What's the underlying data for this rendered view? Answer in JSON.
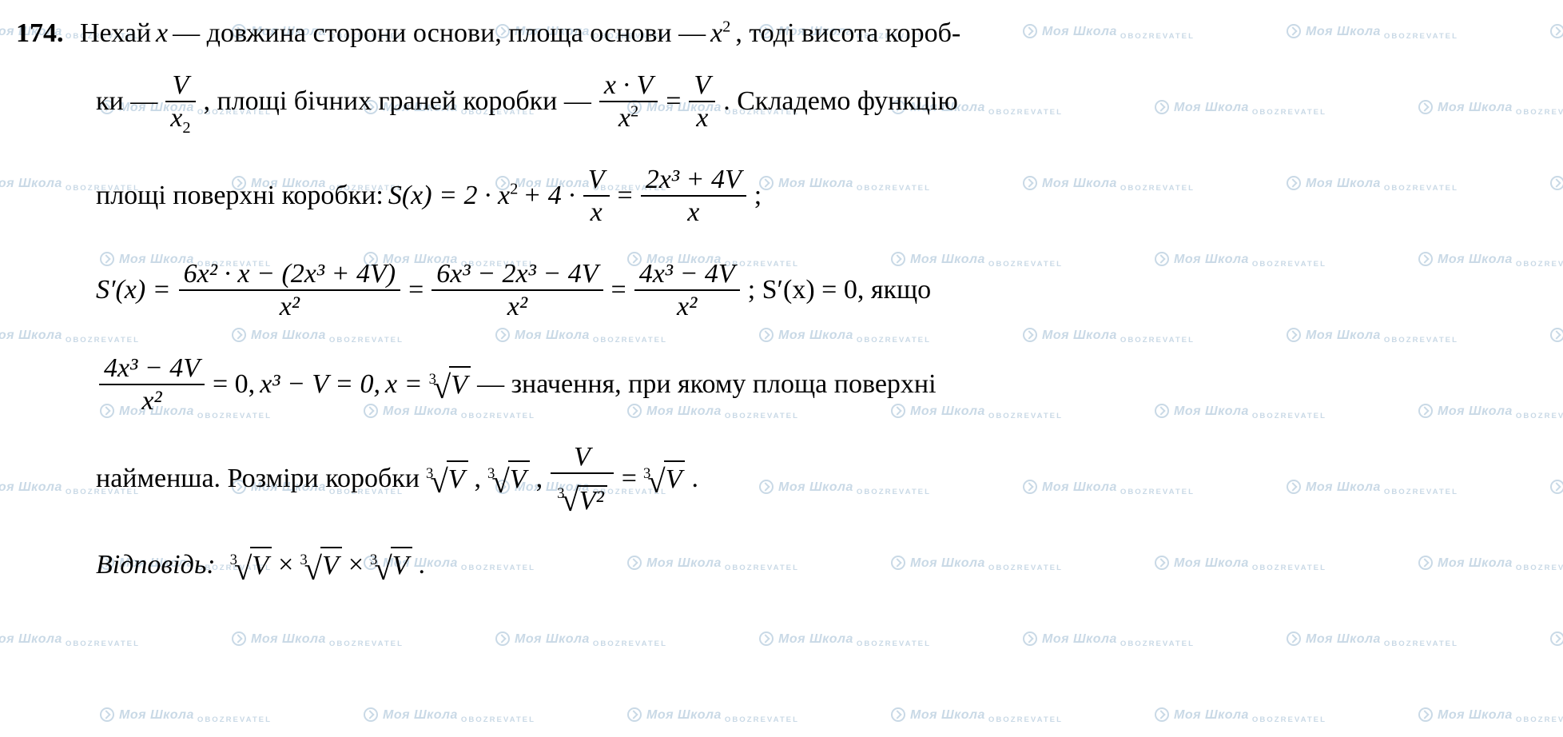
{
  "colors": {
    "text": "#000000",
    "background": "#ffffff",
    "watermark": "#c9d9e6"
  },
  "typography": {
    "body_font": "Times New Roman",
    "body_size_pt": 26,
    "watermark_font": "Arial",
    "watermark_size_pt": 12
  },
  "problem_number": "174.",
  "line1": {
    "t1": "Нехай ",
    "x": "x",
    "t2": " — довжина сторони основи, площа основи — ",
    "x2_base": "x",
    "x2_exp": "2",
    "t3": ", тоді висота короб-"
  },
  "line2": {
    "t1": "ки — ",
    "frac1_num": "V",
    "frac1_den_base": "x",
    "frac1_den_sub": "2",
    "t2": ",  площі бічних граней коробки — ",
    "frac2_num": "x · V",
    "frac2_den_base": "x",
    "frac2_den_exp": "2",
    "eq": " = ",
    "frac3_num": "V",
    "frac3_den": "x",
    "t3": ".  Складемо функцію"
  },
  "line3": {
    "t1": "площі поверхні коробки:  ",
    "lhs": "S(x) = 2 · x",
    "lhs_exp": "2",
    "plus": " + 4 · ",
    "frac1_num": "V",
    "frac1_den": "x",
    "eq": " = ",
    "frac2_num": "2x³ + 4V",
    "frac2_den": "x",
    "semicolon": " ;"
  },
  "line4": {
    "lhs": "S′(x) = ",
    "frac1_num": "6x² · x − (2x³ + 4V)",
    "frac1_den": "x²",
    "eq1": " = ",
    "frac2_num": "6x³ − 2x³ − 4V",
    "frac2_den": "x²",
    "eq2": " = ",
    "frac3_num": "4x³ − 4V",
    "frac3_den": "x²",
    "tail": " ;  S′(x) = 0,  якщо"
  },
  "line5": {
    "frac1_num": "4x³ − 4V",
    "frac1_den": "x²",
    "eq1": " = 0,  ",
    "mid": "x³ − V = 0,  ",
    "x_eq": "x = ",
    "root_deg": "3",
    "root_rad": "V",
    "tail": "  — значення, при якому площа поверхні"
  },
  "line6": {
    "t1": "найменша. Розміри коробки  ",
    "root_deg": "3",
    "root1": "V",
    "comma1": " ,   ",
    "root2": "V",
    "comma2": " ,   ",
    "frac_num": "V",
    "frac_den_deg": "3",
    "frac_den_rad": "V²",
    "eq": " = ",
    "root3": "V",
    "period": " ."
  },
  "answer": {
    "label": "Відповідь:",
    "root_deg": "3",
    "r1": "V",
    "times1": " × ",
    "r2": "V",
    "times2": " × ",
    "r3": "V",
    "period": " ."
  },
  "watermark": {
    "brand": "Моя Школа",
    "sub": "OBOZREVATEL"
  }
}
